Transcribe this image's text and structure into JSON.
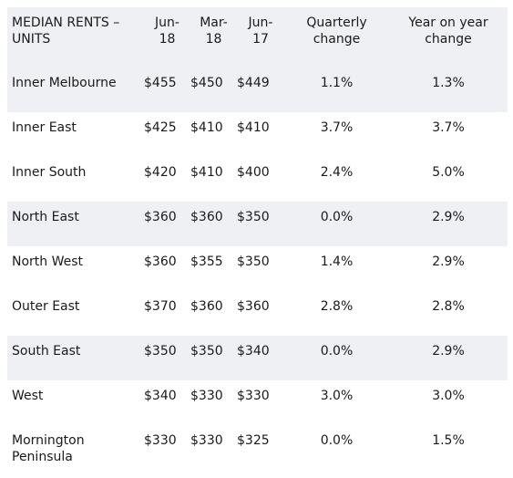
{
  "chart_data": {
    "type": "table",
    "columns": [
      "MEDIAN RENTS –\nUNITS",
      "Jun-\n18",
      "Mar-\n18",
      "Jun-\n17",
      "Quarterly\nchange",
      "Year on year\nchange"
    ],
    "rows": [
      [
        "Inner Melbourne",
        "$455",
        "$450",
        "$449",
        "1.1%",
        "1.3%"
      ],
      [
        "Inner East",
        "$425",
        "$410",
        "$410",
        "3.7%",
        "3.7%"
      ],
      [
        "Inner South",
        "$420",
        "$410",
        "$400",
        "2.4%",
        "5.0%"
      ],
      [
        "North East",
        "$360",
        "$360",
        "$350",
        "0.0%",
        "2.9%"
      ],
      [
        "North West",
        "$360",
        "$355",
        "$350",
        "1.4%",
        "2.9%"
      ],
      [
        "Outer East",
        "$370",
        "$360",
        "$360",
        "2.8%",
        "2.8%"
      ],
      [
        "South East",
        "$350",
        "$350",
        "$340",
        "0.0%",
        "2.9%"
      ],
      [
        "West",
        "$340",
        "$330",
        "$330",
        "3.0%",
        "3.0%"
      ],
      [
        "Mornington\nPeninsula",
        "$330",
        "$330",
        "$325",
        "0.0%",
        "1.5%"
      ]
    ],
    "colors": {
      "shaded_row": "#eef0f3",
      "text": "#1a1a1a"
    }
  }
}
